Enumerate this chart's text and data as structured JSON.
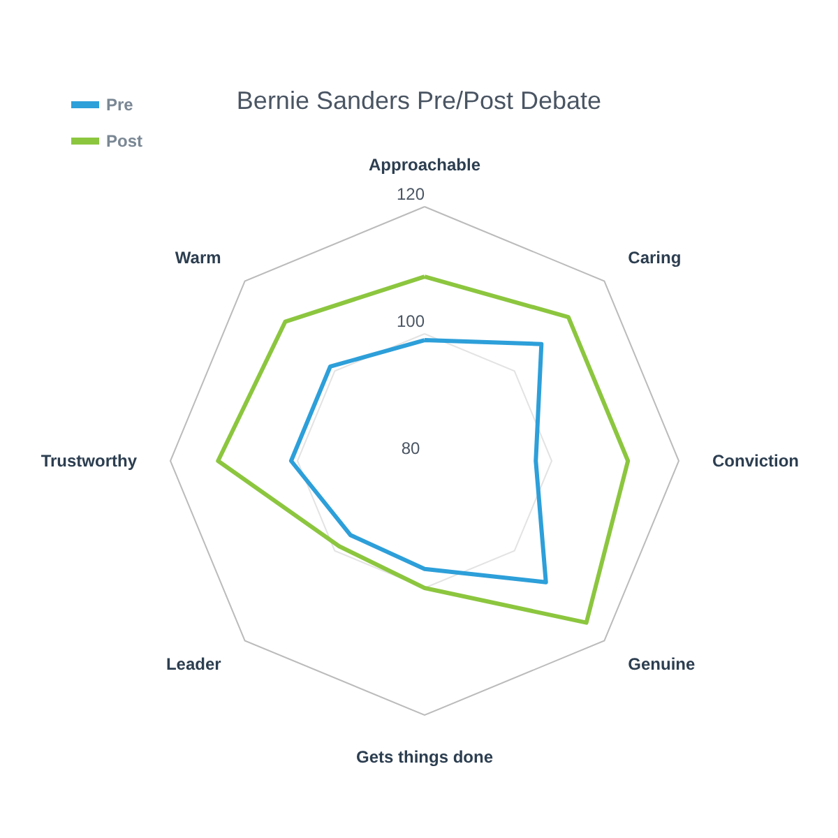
{
  "chart_data": {
    "type": "radar",
    "title": "Bernie Sanders Pre/Post Debate",
    "categories": [
      "Approachable",
      "Caring",
      "Conviction",
      "Genuine",
      "Gets things done",
      "Leader",
      "Trustworthy",
      "Warm"
    ],
    "series": [
      {
        "name": "Pre",
        "color": "#2d9fd9",
        "values": [
          99,
          106,
          97.5,
          107,
          97,
          96.5,
          101,
          101
        ]
      },
      {
        "name": "Post",
        "color": "#8cc63f",
        "values": [
          109,
          112,
          112,
          116,
          100,
          99,
          112.5,
          111
        ]
      }
    ],
    "ylim": [
      80,
      120
    ],
    "yticks": [
      80,
      100,
      120
    ],
    "grid": true,
    "legend": "top left",
    "marker": "none"
  }
}
